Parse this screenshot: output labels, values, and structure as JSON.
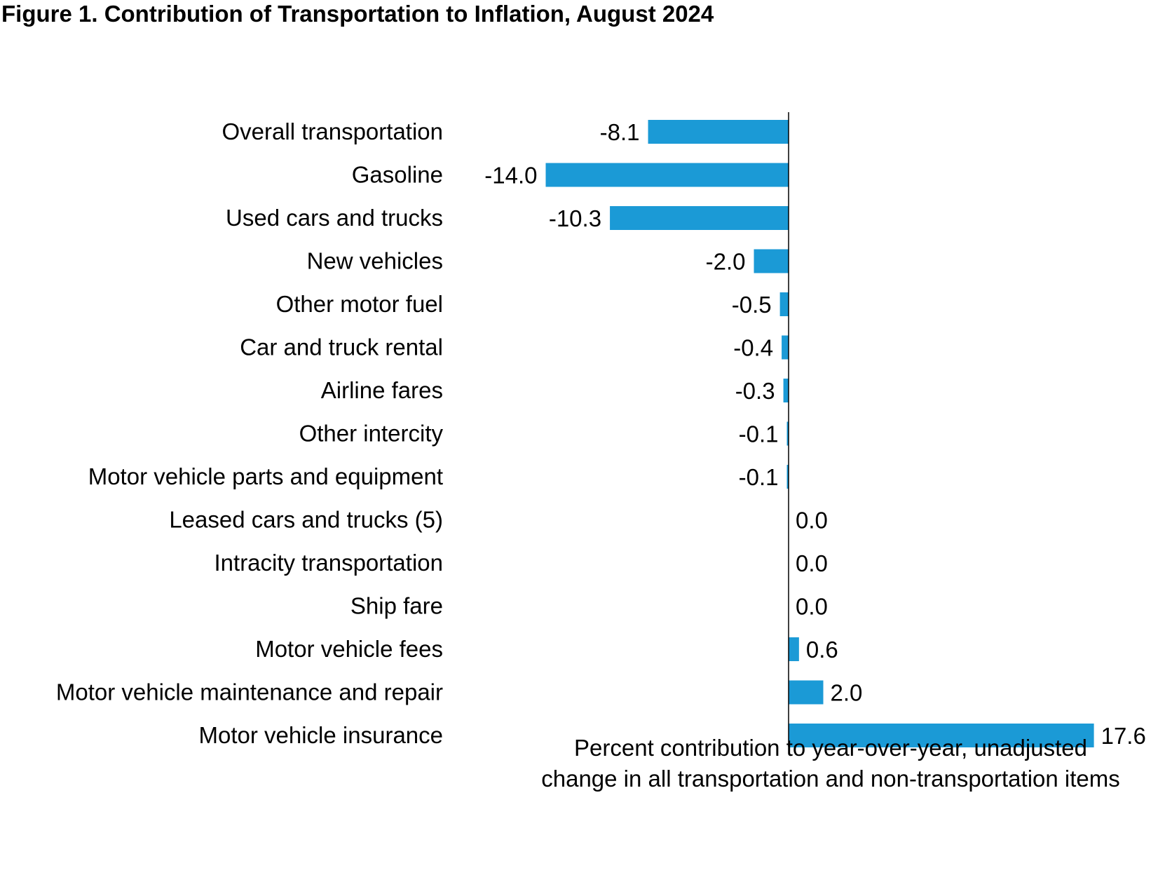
{
  "chart_data": {
    "type": "bar",
    "orientation": "horizontal",
    "title": "Figure 1. Contribution of Transportation to Inflation, August 2024",
    "xlabel_lines": [
      "Percent contribution to year-over-year, unadjusted",
      "change in all transportation and non-transportation items"
    ],
    "ylabel": "",
    "xlim": [
      -14.0,
      17.6
    ],
    "grid": false,
    "legend": "none",
    "bar_color": "#1B9AD6",
    "categories": [
      "Overall transportation",
      "Gasoline",
      "Used cars and trucks",
      "New vehicles",
      "Other motor fuel",
      "Car and truck rental",
      "Airline fares",
      "Other intercity",
      "Motor vehicle parts and equipment",
      "Leased cars and trucks (5)",
      "Intracity transportation",
      "Ship fare",
      "Motor vehicle fees",
      "Motor vehicle maintenance and repair",
      "Motor vehicle insurance"
    ],
    "values": [
      -8.1,
      -14.0,
      -10.3,
      -2.0,
      -0.5,
      -0.4,
      -0.3,
      -0.1,
      -0.1,
      0.0,
      0.0,
      0.0,
      0.6,
      2.0,
      17.6
    ],
    "value_labels": [
      "-8.1",
      "-14.0",
      "-10.3",
      "-2.0",
      "-0.5",
      "-0.4",
      "-0.3",
      "-0.1",
      "-0.1",
      "0.0",
      "0.0",
      "0.0",
      "0.6",
      "2.0",
      "17.6"
    ]
  }
}
